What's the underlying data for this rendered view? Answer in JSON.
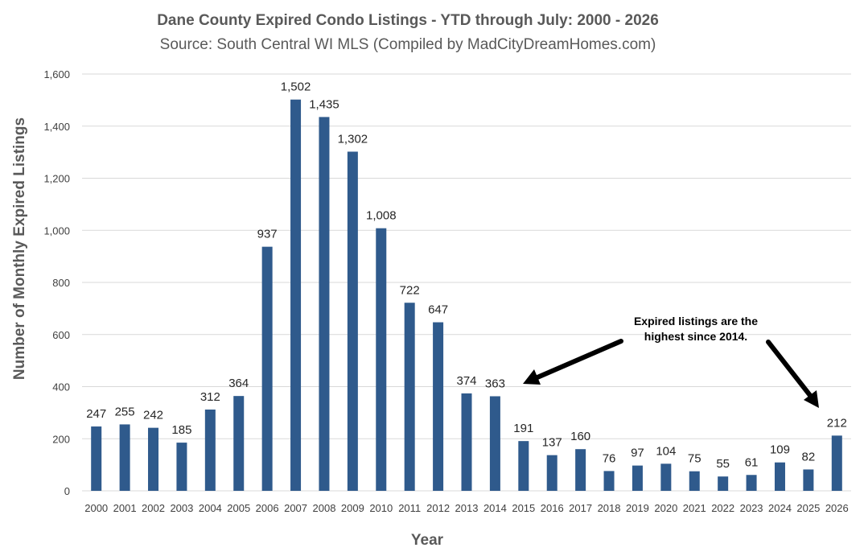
{
  "chart_data": {
    "type": "bar",
    "title": "Dane County Expired Condo Listings - YTD through July: 2000 - 2026",
    "subtitle": "Source: South Central WI MLS (Compiled by MadCityDreamHomes.com)",
    "xlabel": "Year",
    "ylabel": "Number of Monthly Expired Listings",
    "ylim": [
      0,
      1600
    ],
    "yticks": [
      0,
      200,
      400,
      600,
      800,
      1000,
      1200,
      1400,
      1600
    ],
    "ytick_labels": [
      "0",
      "200",
      "400",
      "600",
      "800",
      "1,000",
      "1,200",
      "1,400",
      "1,600"
    ],
    "grid": true,
    "bar_color": "#2f5a8c",
    "categories": [
      "2000",
      "2001",
      "2002",
      "2003",
      "2004",
      "2005",
      "2006",
      "2007",
      "2008",
      "2009",
      "2010",
      "2011",
      "2012",
      "2013",
      "2014",
      "2015",
      "2016",
      "2017",
      "2018",
      "2019",
      "2020",
      "2021",
      "2022",
      "2023",
      "2024",
      "2025",
      "2026"
    ],
    "values": [
      247,
      255,
      242,
      185,
      312,
      364,
      937,
      1502,
      1435,
      1302,
      1008,
      722,
      647,
      374,
      363,
      191,
      137,
      160,
      76,
      97,
      104,
      75,
      55,
      61,
      109,
      82,
      212
    ],
    "data_labels": [
      "247",
      "255",
      "242",
      "185",
      "312",
      "364",
      "937",
      "1,502",
      "1,435",
      "1,302",
      "1,008",
      "722",
      "647",
      "374",
      "363",
      "191",
      "137",
      "160",
      "76",
      "97",
      "104",
      "75",
      "55",
      "61",
      "109",
      "82",
      "212"
    ],
    "annotation": {
      "lines": [
        "Expired listings are the",
        "highest since 2014."
      ],
      "arrow_targets": [
        "2014",
        "2026"
      ]
    }
  }
}
